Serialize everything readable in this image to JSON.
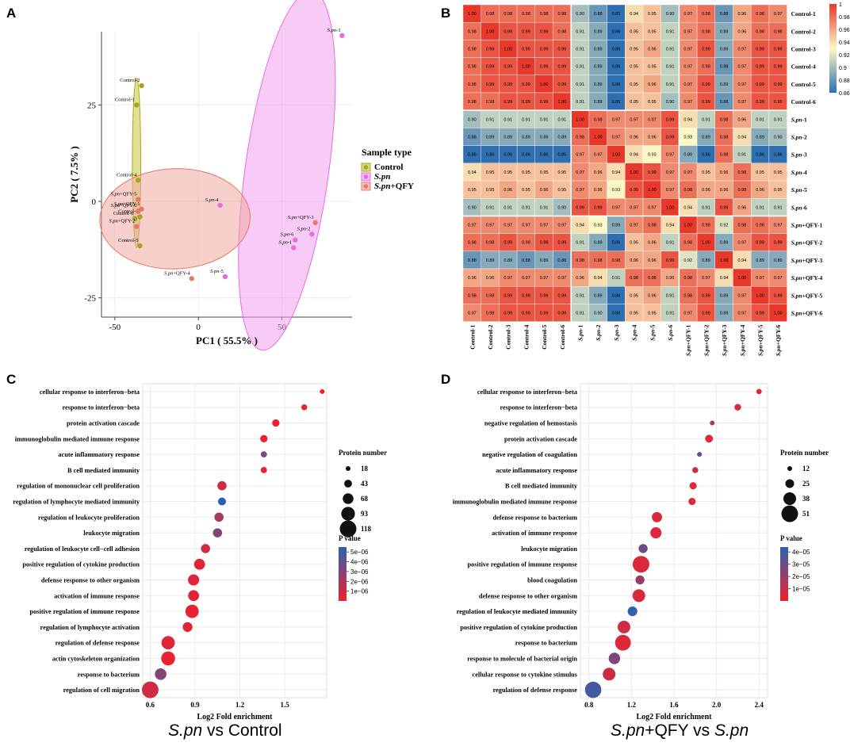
{
  "panel_letters": [
    "A",
    "B",
    "C",
    "D"
  ],
  "subtitles": {
    "c": {
      "species": "S.pn",
      "rest": " vs Control"
    },
    "d": {
      "species1": "S.pn",
      "mid": "+QFY vs ",
      "species2": "S.pn"
    }
  },
  "colors": {
    "control": "#a6a624",
    "spn": "#e86be0",
    "qfy": "#e8786a",
    "control_ellipse": "#c9c93a",
    "spn_ellipse": "#f2a0f0",
    "qfy_ellipse": "#f0a8a0",
    "heat_low": "#2f6fb0",
    "heat_mid": "#fbf8c6",
    "heat_high": "#e8382c",
    "dot_low": "#2a62b3",
    "dot_high": "#f2202a"
  },
  "chart_data": [
    {
      "id": "A",
      "type": "scatter",
      "xlabel": "PC1 ( 55.5% )",
      "ylabel": "PC2 ( 7.5% )",
      "xlim": [
        -58,
        92
      ],
      "ylim": [
        -30,
        44
      ],
      "xticks": [
        -50,
        0,
        50
      ],
      "yticks": [
        -25,
        0,
        25
      ],
      "legend_title": "Sample type",
      "legend": [
        {
          "key": "control",
          "label": "Control",
          "italic": false
        },
        {
          "key": "spn",
          "label": "S.pn",
          "italic": true
        },
        {
          "key": "qfy",
          "label": "S.pn+QFY",
          "italic": false
        }
      ],
      "ellipses": [
        {
          "group": "control",
          "cx": -37,
          "cy": 10,
          "rx": 2.5,
          "ry": 22,
          "angle": 0
        },
        {
          "group": "spn",
          "cx": 53,
          "cy": 8,
          "rx": 25,
          "ry": 47,
          "angle": 8
        },
        {
          "group": "qfy",
          "cx": -14,
          "cy": -4.5,
          "rx": 45,
          "ry": 13,
          "angle": -2
        }
      ],
      "points": [
        {
          "label": "Control-1",
          "group": "control",
          "x": -37,
          "y": 25
        },
        {
          "label": "Control-2",
          "group": "control",
          "x": -34,
          "y": 30
        },
        {
          "label": "Control-3",
          "group": "control",
          "x": -35,
          "y": -4
        },
        {
          "label": "Control-4",
          "group": "control",
          "x": -36,
          "y": 5.5
        },
        {
          "label": "Control-5",
          "group": "control",
          "x": -35,
          "y": -11.5
        },
        {
          "label": "Control-6",
          "group": "control",
          "x": -38,
          "y": -4.5
        },
        {
          "label": "S.pn-1",
          "group": "spn",
          "x": 57,
          "y": -12
        },
        {
          "label": "S.pn-2",
          "group": "spn",
          "x": 68,
          "y": -8.5
        },
        {
          "label": "S.pn-3",
          "group": "spn",
          "x": 86,
          "y": 43
        },
        {
          "label": "S.pn-4",
          "group": "spn",
          "x": 13,
          "y": -1
        },
        {
          "label": "S.pn-5",
          "group": "spn",
          "x": 16,
          "y": -19.5
        },
        {
          "label": "S.pn-6",
          "group": "spn",
          "x": 58,
          "y": -10
        },
        {
          "label": "S.pn+QFY-1",
          "group": "qfy",
          "x": -34,
          "y": -2
        },
        {
          "label": "S.pn+QFY-2",
          "group": "qfy",
          "x": -37,
          "y": -6.5
        },
        {
          "label": "S.pn+QFY-3",
          "group": "qfy",
          "x": 70,
          "y": -5.5
        },
        {
          "label": "S.pn+QFY-4",
          "group": "qfy",
          "x": -4,
          "y": -20
        },
        {
          "label": "S.pn+QFY-5",
          "group": "qfy",
          "x": -36,
          "y": 0.5
        },
        {
          "label": "S.pn+QFY-6",
          "group": "qfy",
          "x": -36,
          "y": -2.5
        }
      ]
    },
    {
      "id": "B",
      "type": "heatmap",
      "labels": [
        "Control-1",
        "Control-2",
        "Control-3",
        "Control-4",
        "Control-5",
        "Control-6",
        "S.pn-1",
        "S.pn-2",
        "S.pn-3",
        "S.pn-4",
        "S.pn-5",
        "S.pn-6",
        "S.pn+QFY-1",
        "S.pn+QFY-2",
        "S.pn+QFY-3",
        "S.pn+QFY-4",
        "S.pn+QFY-5",
        "S.pn+QFY-6"
      ],
      "scale_range": [
        0.86,
        1
      ],
      "colorbar_ticks": [
        "1",
        "0.98",
        "0.96",
        "0.94",
        "0.92",
        "0.9",
        "0.88",
        "0.86"
      ],
      "colorbar_values": [
        1,
        0.98,
        0.96,
        0.94,
        0.92,
        0.9,
        0.88,
        0.86
      ],
      "matrix": [
        [
          "1.00",
          "0.98",
          "0.98",
          "0.98",
          "0.98",
          "0.98",
          "0.90",
          "0.88",
          "0.85",
          "0.94",
          "0.95",
          "0.90",
          "0.97",
          "0.98",
          "0.88",
          "0.96",
          "0.98",
          "0.97"
        ],
        [
          "0.98",
          "1.00",
          "0.99",
          "0.99",
          "0.99",
          "0.98",
          "0.91",
          "0.89",
          "0.86",
          "0.95",
          "0.95",
          "0.91",
          "0.97",
          "0.98",
          "0.89",
          "0.96",
          "0.98",
          "0.98"
        ],
        [
          "0.98",
          "0.99",
          "1.00",
          "0.99",
          "0.99",
          "0.99",
          "0.91",
          "0.89",
          "0.86",
          "0.95",
          "0.96",
          "0.91",
          "0.97",
          "0.99",
          "0.89",
          "0.97",
          "0.99",
          "0.99"
        ],
        [
          "0.98",
          "0.99",
          "0.99",
          "1.00",
          "0.99",
          "0.99",
          "0.91",
          "0.89",
          "0.86",
          "0.95",
          "0.95",
          "0.91",
          "0.97",
          "0.98",
          "0.88",
          "0.97",
          "0.99",
          "0.99"
        ],
        [
          "0.98",
          "0.99",
          "0.99",
          "0.99",
          "1.00",
          "0.99",
          "0.91",
          "0.89",
          "0.86",
          "0.95",
          "0.96",
          "0.91",
          "0.97",
          "0.99",
          "0.89",
          "0.97",
          "0.99",
          "0.99"
        ],
        [
          "0.98",
          "0.98",
          "0.99",
          "0.99",
          "0.99",
          "1.00",
          "0.91",
          "0.89",
          "0.85",
          "0.95",
          "0.95",
          "0.90",
          "0.97",
          "0.99",
          "0.88",
          "0.97",
          "0.99",
          "0.99"
        ],
        [
          "0.90",
          "0.91",
          "0.91",
          "0.91",
          "0.91",
          "0.91",
          "1.00",
          "0.98",
          "0.97",
          "0.97",
          "0.97",
          "0.99",
          "0.94",
          "0.91",
          "0.98",
          "0.96",
          "0.91",
          "0.91"
        ],
        [
          "0.88",
          "0.89",
          "0.89",
          "0.89",
          "0.89",
          "0.89",
          "0.98",
          "1.00",
          "0.97",
          "0.96",
          "0.96",
          "0.99",
          "0.93",
          "0.89",
          "0.98",
          "0.94",
          "0.89",
          "0.90"
        ],
        [
          "0.85",
          "0.86",
          "0.86",
          "0.86",
          "0.86",
          "0.85",
          "0.97",
          "0.97",
          "1.00",
          "0.94",
          "0.93",
          "0.97",
          "0.89",
          "0.86",
          "0.98",
          "0.91",
          "0.86",
          "0.86"
        ],
        [
          "0.94",
          "0.95",
          "0.95",
          "0.95",
          "0.95",
          "0.95",
          "0.97",
          "0.96",
          "0.94",
          "1.00",
          "0.99",
          "0.97",
          "0.97",
          "0.95",
          "0.96",
          "0.98",
          "0.95",
          "0.95"
        ],
        [
          "0.95",
          "0.95",
          "0.96",
          "0.95",
          "0.96",
          "0.95",
          "0.97",
          "0.96",
          "0.93",
          "0.99",
          "1.00",
          "0.97",
          "0.98",
          "0.96",
          "0.96",
          "0.98",
          "0.96",
          "0.95"
        ],
        [
          "0.90",
          "0.91",
          "0.91",
          "0.91",
          "0.91",
          "0.90",
          "0.99",
          "0.99",
          "0.97",
          "0.97",
          "0.97",
          "1.00",
          "0.94",
          "0.91",
          "0.99",
          "0.96",
          "0.91",
          "0.91"
        ],
        [
          "0.97",
          "0.97",
          "0.97",
          "0.97",
          "0.97",
          "0.97",
          "0.94",
          "0.93",
          "0.89",
          "0.97",
          "0.98",
          "0.94",
          "1.00",
          "0.98",
          "0.92",
          "0.98",
          "0.98",
          "0.97"
        ],
        [
          "0.98",
          "0.98",
          "0.99",
          "0.98",
          "0.99",
          "0.99",
          "0.91",
          "0.89",
          "0.86",
          "0.95",
          "0.96",
          "0.91",
          "0.98",
          "1.00",
          "0.89",
          "0.97",
          "0.99",
          "0.99"
        ],
        [
          "0.88",
          "0.89",
          "0.89",
          "0.88",
          "0.89",
          "0.88",
          "0.98",
          "0.98",
          "0.98",
          "0.96",
          "0.96",
          "0.99",
          "0.92",
          "0.89",
          "1.00",
          "0.94",
          "0.89",
          "0.89"
        ],
        [
          "0.96",
          "0.96",
          "0.97",
          "0.97",
          "0.97",
          "0.97",
          "0.96",
          "0.94",
          "0.91",
          "0.98",
          "0.98",
          "0.96",
          "0.98",
          "0.97",
          "0.94",
          "1.00",
          "0.97",
          "0.97"
        ],
        [
          "0.98",
          "0.98",
          "0.99",
          "0.99",
          "0.99",
          "0.99",
          "0.91",
          "0.89",
          "0.86",
          "0.95",
          "0.96",
          "0.91",
          "0.98",
          "0.99",
          "0.89",
          "0.97",
          "1.00",
          "0.99"
        ],
        [
          "0.97",
          "0.98",
          "0.99",
          "0.99",
          "0.99",
          "0.99",
          "0.91",
          "0.90",
          "0.86",
          "0.95",
          "0.95",
          "0.91",
          "0.97",
          "0.99",
          "0.89",
          "0.97",
          "0.99",
          "1.00"
        ]
      ]
    },
    {
      "id": "C",
      "type": "scatter",
      "subtype": "bubble",
      "xlabel": "Log2 Fold enrichment",
      "xlim": [
        0.55,
        1.78
      ],
      "xticks": [
        0.6,
        0.9,
        1.2,
        1.5
      ],
      "xtick_labels": [
        "0.6",
        "0.9",
        "1.2",
        "1.5"
      ],
      "size_legend_title": "Protein number",
      "size_legend": [
        18,
        43,
        68,
        93,
        118
      ],
      "size_range": [
        18,
        118
      ],
      "color_legend_title": "P value",
      "color_ticks": [
        "5e−06",
        "4e−06",
        "3e−06",
        "2e−06",
        "1e−06"
      ],
      "color_tick_values": [
        5e-06,
        4e-06,
        3e-06,
        2e-06,
        1e-06
      ],
      "color_range": [
        0,
        5.5e-06
      ],
      "terms": [
        "cellular response to interferon−beta",
        "response to interferon−beta",
        "protein activation cascade",
        "immunoglobulin mediated immune response",
        "acute inflammatory response",
        "B cell mediated immunity",
        "regulation of mononuclear cell proliferation",
        "regulation of lymphocyte mediated immunity",
        "regulation of leukocyte proliferation",
        "leukocyte migration",
        "regulation of leukocyte cell−cell adhesion",
        "positive regulation of cytokine production",
        "defense response to other organism",
        "activation of immune response",
        "positive regulation of immune response",
        "regulation of lymphocyte activation",
        "regulation of defense response",
        "actin cytoskeleton organization",
        "response to bacterium",
        "regulation of cell migration"
      ],
      "x": [
        1.75,
        1.63,
        1.44,
        1.36,
        1.36,
        1.36,
        1.08,
        1.08,
        1.06,
        1.05,
        0.97,
        0.93,
        0.89,
        0.89,
        0.88,
        0.85,
        0.72,
        0.72,
        0.67,
        0.6
      ],
      "size": [
        18,
        28,
        40,
        40,
        30,
        30,
        55,
        45,
        55,
        55,
        55,
        70,
        72,
        70,
        90,
        60,
        90,
        95,
        75,
        118
      ],
      "pvalue": [
        1e-07,
        2e-07,
        1e-07,
        1e-07,
        3.5e-06,
        2e-07,
        1e-06,
        5.5e-06,
        2e-06,
        3e-06,
        1e-06,
        5e-07,
        5e-07,
        5e-07,
        3e-07,
        5e-07,
        5e-07,
        2e-07,
        3e-06,
        1e-06
      ]
    },
    {
      "id": "D",
      "type": "scatter",
      "subtype": "bubble",
      "xlabel": "Log2 Fold enrichment",
      "xlim": [
        0.72,
        2.48
      ],
      "xticks": [
        0.8,
        1.2,
        1.6,
        2.0,
        2.4
      ],
      "xtick_labels": [
        "0.8",
        "1.2",
        "1.6",
        "2.0",
        "2.4"
      ],
      "size_legend_title": "Protein number",
      "size_legend": [
        12,
        25,
        38,
        51
      ],
      "size_range": [
        12,
        51
      ],
      "color_legend_title": "P value",
      "color_ticks": [
        "4e−05",
        "3e−05",
        "2e−05",
        "1e−05"
      ],
      "color_tick_values": [
        4e-05,
        3e-05,
        2e-05,
        1e-05
      ],
      "color_range": [
        0,
        4.4e-05
      ],
      "terms": [
        "cellular response to interferon−beta",
        "response to interferon−beta",
        "negative regulation of hemostasis",
        "protein activation cascade",
        "negative regulation of coagulation",
        "acute inflammatory response",
        "B cell mediated immunity",
        "immunoglobulin mediated immune response",
        "defense response to bacterium",
        "activation of immune response",
        "leukocyte migration",
        "positive regulation of immune response",
        "blood coagulation",
        "defense response to other organism",
        "regulation of leukocyte mediated immunity",
        "positive regulation of cytokine production",
        "response to bacterium",
        "response to molecule of bacterial origin",
        "cellular response to cytokine stimulus",
        "regulation of defense response"
      ],
      "x": [
        2.4,
        2.2,
        1.96,
        1.93,
        1.84,
        1.8,
        1.78,
        1.77,
        1.44,
        1.43,
        1.31,
        1.29,
        1.28,
        1.27,
        1.21,
        1.13,
        1.12,
        1.04,
        0.99,
        0.84
      ],
      "size": [
        14,
        18,
        12,
        22,
        12,
        16,
        20,
        20,
        30,
        33,
        26,
        51,
        26,
        38,
        28,
        38,
        48,
        34,
        38,
        50
      ],
      "pvalue": [
        5e-06,
        5e-06,
        1.5e-05,
        5e-06,
        3e-05,
        8e-06,
        5e-06,
        5e-06,
        5e-06,
        5e-06,
        3e-05,
        5e-06,
        2e-05,
        5e-06,
        4.2e-05,
        8e-06,
        5e-06,
        2.5e-05,
        8e-06,
        3.8e-05
      ]
    }
  ]
}
